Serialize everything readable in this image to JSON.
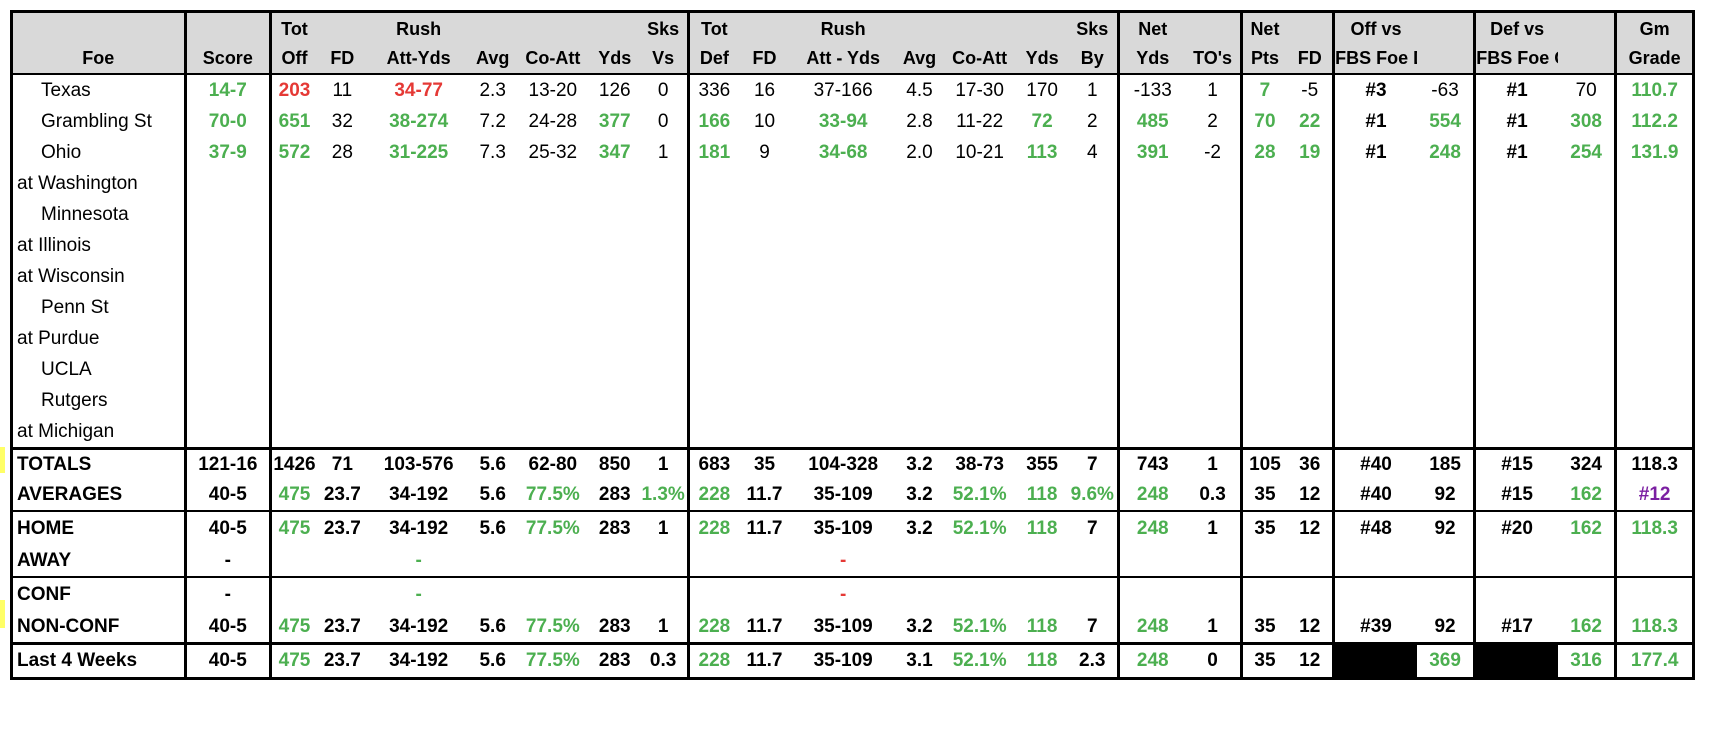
{
  "headers": {
    "top": [
      "",
      "",
      "Tot",
      "",
      "Rush",
      "",
      "",
      "",
      "Sks",
      "Tot",
      "",
      "Rush",
      "",
      "",
      "",
      "Sks",
      "Net",
      "",
      "Net",
      "",
      "Off vs",
      "",
      "Def vs",
      "",
      "Gm"
    ],
    "bottom": [
      "Foe",
      "Score",
      "Off",
      "FD",
      "Att-Yds",
      "Avg",
      "Co-Att",
      "Yds",
      "Vs",
      "Def",
      "FD",
      "Att - Yds",
      "Avg",
      "Co-Att",
      "Yds",
      "By",
      "Yds",
      "TO's",
      "Pts",
      "FD",
      "FBS Foe Def",
      "",
      "FBS Foe Off",
      "",
      "Grade"
    ]
  },
  "games": [
    {
      "foe": "Texas",
      "loc": "home",
      "score": "14-7",
      "tot_off": "203",
      "fd": "11",
      "rush": "34-77",
      "avg": "2.3",
      "co_att": "13-20",
      "yds": "126",
      "sks_vs": "0",
      "tot_def": "336",
      "dfd": "16",
      "drush": "37-166",
      "davg": "4.5",
      "dco_att": "17-30",
      "dyds": "170",
      "sks_by": "1",
      "net_yds": "-133",
      "tos": "1",
      "net_pts": "7",
      "net_fd": "-5",
      "off_rank": "#3",
      "off_val": "-63",
      "def_rank": "#1",
      "def_val": "70",
      "grade": "110.7"
    },
    {
      "foe": "Grambling St",
      "loc": "home",
      "score": "70-0",
      "tot_off": "651",
      "fd": "32",
      "rush": "38-274",
      "avg": "7.2",
      "co_att": "24-28",
      "yds": "377",
      "sks_vs": "0",
      "tot_def": "166",
      "dfd": "10",
      "drush": "33-94",
      "davg": "2.8",
      "dco_att": "11-22",
      "dyds": "72",
      "sks_by": "2",
      "net_yds": "485",
      "tos": "2",
      "net_pts": "70",
      "net_fd": "22",
      "off_rank": "#1",
      "off_val": "554",
      "def_rank": "#1",
      "def_val": "308",
      "grade": "112.2"
    },
    {
      "foe": "Ohio",
      "loc": "home",
      "score": "37-9",
      "tot_off": "572",
      "fd": "28",
      "rush": "31-225",
      "avg": "7.3",
      "co_att": "25-32",
      "yds": "347",
      "sks_vs": "1",
      "tot_def": "181",
      "dfd": "9",
      "drush": "34-68",
      "davg": "2.0",
      "dco_att": "10-21",
      "dyds": "113",
      "sks_by": "4",
      "net_yds": "391",
      "tos": "-2",
      "net_pts": "28",
      "net_fd": "19",
      "off_rank": "#1",
      "off_val": "248",
      "def_rank": "#1",
      "def_val": "254",
      "grade": "131.9"
    },
    {
      "foe": "at Washington",
      "loc": "away"
    },
    {
      "foe": "Minnesota",
      "loc": "home"
    },
    {
      "foe": "at Illinois",
      "loc": "away"
    },
    {
      "foe": "at Wisconsin",
      "loc": "away"
    },
    {
      "foe": "Penn St",
      "loc": "home"
    },
    {
      "foe": "at Purdue",
      "loc": "away"
    },
    {
      "foe": "UCLA",
      "loc": "home"
    },
    {
      "foe": "Rutgers",
      "loc": "home"
    },
    {
      "foe": "at Michigan",
      "loc": "away"
    }
  ],
  "summary": [
    {
      "label": "TOTALS",
      "score": "121-16",
      "tot_off": "1426",
      "fd": "71",
      "rush": "103-576",
      "avg": "5.6",
      "co_att": "62-80",
      "yds": "850",
      "sks_vs": "1",
      "tot_def": "683",
      "dfd": "35",
      "drush": "104-328",
      "davg": "3.2",
      "dco_att": "38-73",
      "dyds": "355",
      "sks_by": "7",
      "net_yds": "743",
      "tos": "1",
      "net_pts": "105",
      "net_fd": "36",
      "off_rank": "#40",
      "off_val": "185",
      "def_rank": "#15",
      "def_val": "324",
      "grade": "118.3"
    },
    {
      "label": "AVERAGES",
      "score": "40-5",
      "tot_off": "475",
      "fd": "23.7",
      "rush": "34-192",
      "avg": "5.6",
      "co_att": "77.5%",
      "yds": "283",
      "sks_vs": "1.3%",
      "tot_def": "228",
      "dfd": "11.7",
      "drush": "35-109",
      "davg": "3.2",
      "dco_att": "52.1%",
      "dyds": "118",
      "sks_by": "9.6%",
      "net_yds": "248",
      "tos": "0.3",
      "net_pts": "35",
      "net_fd": "12",
      "off_rank": "#40",
      "off_val": "92",
      "def_rank": "#15",
      "def_val": "162",
      "grade": "#12"
    },
    {
      "label": "HOME",
      "score": "40-5",
      "tot_off": "475",
      "fd": "23.7",
      "rush": "34-192",
      "avg": "5.6",
      "co_att": "77.5%",
      "yds": "283",
      "sks_vs": "1",
      "tot_def": "228",
      "dfd": "11.7",
      "drush": "35-109",
      "davg": "3.2",
      "dco_att": "52.1%",
      "dyds": "118",
      "sks_by": "7",
      "net_yds": "248",
      "tos": "1",
      "net_pts": "35",
      "net_fd": "12",
      "off_rank": "#48",
      "off_val": "92",
      "def_rank": "#20",
      "def_val": "162",
      "grade": "118.3"
    },
    {
      "label": "AWAY",
      "score": "-",
      "rush": "-",
      "drush": "-"
    },
    {
      "label": "CONF",
      "score": "-",
      "rush": "-",
      "drush": "-"
    },
    {
      "label": "NON-CONF",
      "score": "40-5",
      "tot_off": "475",
      "fd": "23.7",
      "rush": "34-192",
      "avg": "5.6",
      "co_att": "77.5%",
      "yds": "283",
      "sks_vs": "1",
      "tot_def": "228",
      "dfd": "11.7",
      "drush": "35-109",
      "davg": "3.2",
      "dco_att": "52.1%",
      "dyds": "118",
      "sks_by": "7",
      "net_yds": "248",
      "tos": "1",
      "net_pts": "35",
      "net_fd": "12",
      "off_rank": "#39",
      "off_val": "92",
      "def_rank": "#17",
      "def_val": "162",
      "grade": "118.3"
    },
    {
      "label": "Last 4 Weeks",
      "score": "40-5",
      "tot_off": "475",
      "fd": "23.7",
      "rush": "34-192",
      "avg": "5.6",
      "co_att": "77.5%",
      "yds": "283",
      "sks_vs": "0.3",
      "tot_def": "228",
      "dfd": "11.7",
      "drush": "35-109",
      "davg": "3.1",
      "dco_att": "52.1%",
      "dyds": "118",
      "sks_by": "2.3",
      "net_yds": "248",
      "tos": "0",
      "net_pts": "35",
      "net_fd": "12",
      "off_rank": "",
      "off_val": "369",
      "def_rank": "",
      "def_val": "316",
      "grade": "177.4"
    }
  ],
  "colors": {
    "good": "#4caf50",
    "bad": "#e53935",
    "rank": "#7b1fa2",
    "header_bg": "#d9d9d9"
  }
}
